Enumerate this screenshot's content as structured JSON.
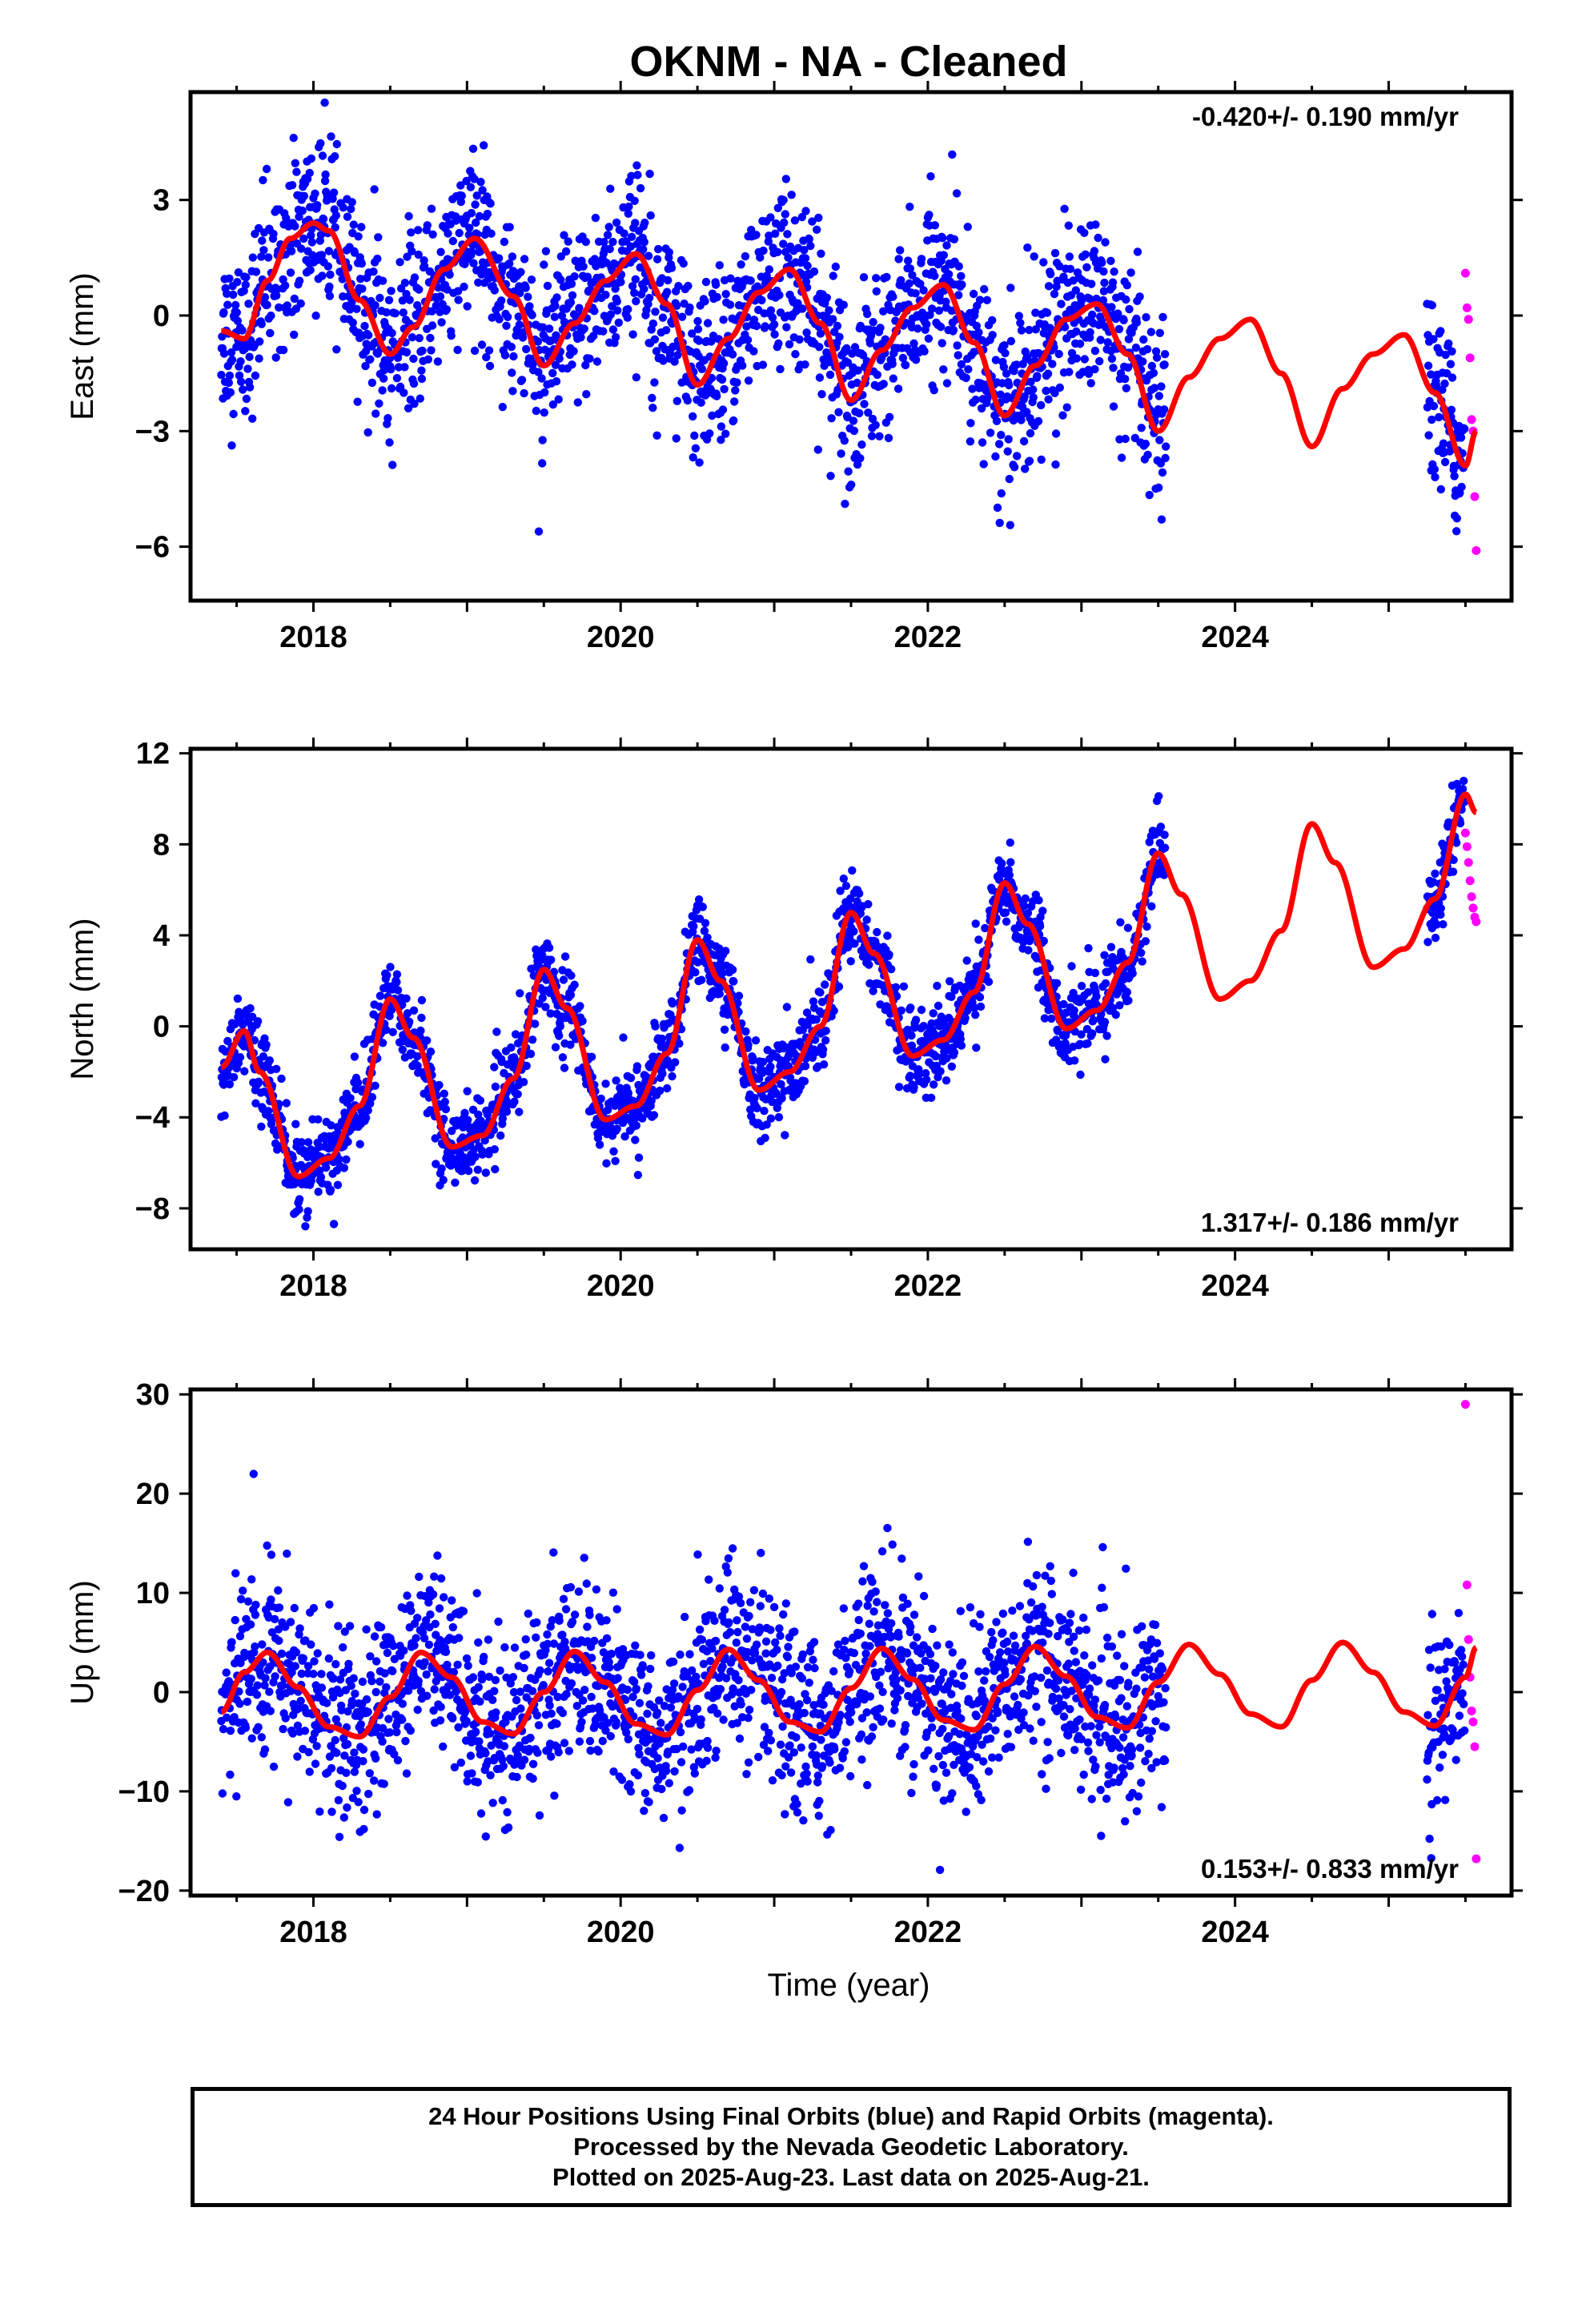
{
  "title": "OKNM  - NA - Cleaned",
  "xlabel": "Time (year)",
  "footer": {
    "line1": "24 Hour Positions Using Final Orbits (blue) and Rapid Orbits (magenta).",
    "line2": "Processed by the Nevada Geodetic Laboratory.",
    "line3": "Plotted on 2025-Aug-23. Last data on 2025-Aug-21."
  },
  "colors": {
    "final": "#0000ff",
    "rapid": "#ff00ff",
    "model": "#ff0000",
    "axes": "#000000"
  },
  "chart_data": [
    {
      "type": "scatter",
      "component": "east",
      "ylabel": "East (mm)",
      "rate": "-0.420+/- 0.190 mm/yr",
      "rate_position": "top-right",
      "xlim": [
        2017.2,
        2025.8
      ],
      "ylim": [
        -7.4,
        5.8
      ],
      "yticks": [
        -6,
        -3,
        0,
        3
      ],
      "xticks": [
        2018,
        2020,
        2022,
        2024
      ],
      "data_start": 2017.4,
      "data_gap_start": 2023.55,
      "data_resume": 2025.25,
      "data_end": 2025.57,
      "series": [
        {
          "name": "Final Orbits",
          "values_note": "daily",
          "model": {
            "offset": -0.5,
            "trend": -0.42,
            "annual_cos": -1.0,
            "annual_sin": 0.6,
            "semiannual_cos": -0.2,
            "semiannual_sin": 0.5
          },
          "scatter_sd": 1.1
        },
        {
          "name": "Rapid Orbits",
          "x": [
            2025.5,
            2025.51,
            2025.52,
            2025.53,
            2025.54,
            2025.55,
            2025.56,
            2025.57
          ],
          "y": [
            1.1,
            0.2,
            -0.1,
            -1.1,
            -2.7,
            -3.0,
            -4.7,
            -6.1
          ]
        }
      ],
      "model_curve": {
        "x": [
          2017.4,
          2017.55,
          2017.7,
          2017.85,
          2018.0,
          2018.1,
          2018.3,
          2018.5,
          2018.65,
          2018.85,
          2019.05,
          2019.3,
          2019.5,
          2019.7,
          2019.9,
          2020.1,
          2020.3,
          2020.5,
          2020.7,
          2020.9,
          2021.1,
          2021.3,
          2021.5,
          2021.7,
          2021.9,
          2022.1,
          2022.3,
          2022.5,
          2022.7,
          2022.9,
          2023.1,
          2023.3,
          2023.5,
          2023.7,
          2023.9,
          2024.1,
          2024.3,
          2024.5,
          2024.7,
          2024.9,
          2025.1,
          2025.3,
          2025.5,
          2025.57
        ],
        "y": [
          -0.4,
          -0.6,
          0.9,
          2.0,
          2.4,
          2.2,
          0.4,
          -1.0,
          -0.3,
          1.2,
          2.0,
          0.5,
          -1.3,
          -0.2,
          0.9,
          1.6,
          0.3,
          -1.8,
          -0.6,
          0.6,
          1.2,
          -0.2,
          -2.2,
          -0.9,
          0.2,
          0.8,
          -0.7,
          -2.6,
          -1.3,
          -0.1,
          0.3,
          -1.0,
          -3.0,
          -1.6,
          -0.6,
          -0.1,
          -1.5,
          -3.4,
          -1.9,
          -1.0,
          -0.5,
          -2.0,
          -3.9,
          -3.0
        ]
      }
    },
    {
      "type": "scatter",
      "component": "north",
      "ylabel": "North (mm)",
      "rate": "1.317+/- 0.186 mm/yr",
      "rate_position": "bottom-right",
      "xlim": [
        2017.2,
        2025.8
      ],
      "ylim": [
        -9.8,
        12.2
      ],
      "yticks": [
        -8,
        -4,
        0,
        4,
        8,
        12
      ],
      "xticks": [
        2018,
        2020,
        2022,
        2024
      ],
      "data_start": 2017.4,
      "data_gap_start": 2023.55,
      "data_resume": 2025.25,
      "data_end": 2025.57,
      "series": [
        {
          "name": "Final Orbits",
          "values_note": "daily",
          "scatter_sd": 0.9
        },
        {
          "name": "Rapid Orbits",
          "x": [
            2025.5,
            2025.51,
            2025.52,
            2025.53,
            2025.54,
            2025.55,
            2025.56,
            2025.57
          ],
          "y": [
            8.5,
            7.9,
            7.2,
            6.4,
            5.7,
            5.2,
            4.8,
            4.6
          ]
        }
      ],
      "model_curve": {
        "x": [
          2017.4,
          2017.55,
          2017.65,
          2017.9,
          2018.1,
          2018.3,
          2018.5,
          2018.65,
          2018.9,
          2019.1,
          2019.3,
          2019.5,
          2019.65,
          2019.9,
          2020.1,
          2020.3,
          2020.5,
          2020.65,
          2020.9,
          2021.1,
          2021.3,
          2021.5,
          2021.65,
          2021.9,
          2022.1,
          2022.3,
          2022.5,
          2022.65,
          2022.9,
          2023.1,
          2023.3,
          2023.5,
          2023.65,
          2023.9,
          2024.1,
          2024.3,
          2024.5,
          2024.65,
          2024.9,
          2025.1,
          2025.3,
          2025.5,
          2025.57
        ],
        "y": [
          -1.8,
          -0.2,
          -2.0,
          -6.6,
          -5.8,
          -3.5,
          1.2,
          -0.5,
          -5.3,
          -4.8,
          -2.3,
          2.5,
          0.8,
          -4.1,
          -3.5,
          -1.2,
          3.8,
          2.0,
          -2.8,
          -2.0,
          0.0,
          5.0,
          3.2,
          -1.3,
          -0.6,
          1.5,
          6.3,
          4.5,
          -0.1,
          0.7,
          2.8,
          7.6,
          5.8,
          1.2,
          2.0,
          4.2,
          8.9,
          7.2,
          2.6,
          3.4,
          5.6,
          10.2,
          9.4
        ]
      }
    },
    {
      "type": "scatter",
      "component": "up",
      "ylabel": "Up (mm)",
      "rate": "0.153+/- 0.833 mm/yr",
      "rate_position": "bottom-right",
      "xlim": [
        2017.2,
        2025.8
      ],
      "ylim": [
        -20.5,
        30.5
      ],
      "yticks": [
        -20,
        -10,
        0,
        10,
        20,
        30
      ],
      "xticks": [
        2018,
        2020,
        2022,
        2024
      ],
      "data_start": 2017.4,
      "data_gap_start": 2023.55,
      "data_resume": 2025.25,
      "data_end": 2025.57,
      "series": [
        {
          "name": "Final Orbits",
          "values_note": "daily",
          "scatter_sd": 4.5
        },
        {
          "name": "Rapid Orbits",
          "x": [
            2025.5,
            2025.51,
            2025.52,
            2025.53,
            2025.54,
            2025.55,
            2025.56,
            2025.57
          ],
          "y": [
            29.0,
            10.8,
            5.3,
            1.5,
            -1.9,
            -3.0,
            -5.5,
            -16.8
          ]
        }
      ],
      "model_curve": {
        "x": [
          2017.4,
          2017.55,
          2017.7,
          2017.9,
          2018.1,
          2018.3,
          2018.5,
          2018.7,
          2018.9,
          2019.1,
          2019.3,
          2019.5,
          2019.7,
          2019.9,
          2020.1,
          2020.3,
          2020.5,
          2020.7,
          2020.9,
          2021.1,
          2021.3,
          2021.5,
          2021.7,
          2021.9,
          2022.1,
          2022.3,
          2022.5,
          2022.7,
          2022.9,
          2023.1,
          2023.3,
          2023.5,
          2023.7,
          2023.9,
          2024.1,
          2024.3,
          2024.5,
          2024.7,
          2024.9,
          2025.1,
          2025.3,
          2025.5,
          2025.57
        ],
        "y": [
          -2.0,
          2.0,
          4.0,
          0.5,
          -3.5,
          -4.5,
          -0.5,
          4.0,
          1.5,
          -3.0,
          -4.2,
          0.0,
          4.1,
          1.0,
          -3.2,
          -4.3,
          0.2,
          4.3,
          1.2,
          -3.0,
          -4.0,
          0.4,
          4.4,
          1.3,
          -2.8,
          -3.8,
          0.8,
          4.6,
          1.6,
          -2.5,
          -3.6,
          1.0,
          4.8,
          1.8,
          -2.2,
          -3.5,
          1.2,
          5.0,
          2.0,
          -2.0,
          -3.4,
          1.5,
          4.5
        ]
      }
    }
  ]
}
